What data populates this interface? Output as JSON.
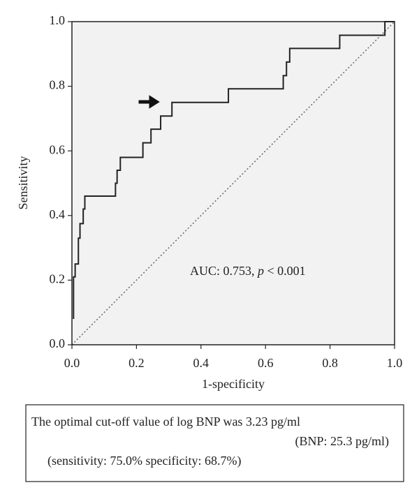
{
  "chart_data": {
    "type": "line",
    "step": true,
    "xlabel": "1-specificity",
    "ylabel": "Sensitivity",
    "annotation": [
      "AUC: 0.753, ",
      "p",
      " < 0.001"
    ],
    "notes": [
      "The optimal cut-off value of log BNP was 3.23 pg/ml",
      "(BNP: 25.3 pg/ml)",
      "(sensitivity: 75.0% specificity: 68.7%)"
    ],
    "x": [
      0.005,
      0.005,
      0.01,
      0.01,
      0.02,
      0.02,
      0.025,
      0.025,
      0.035,
      0.035,
      0.04,
      0.04,
      0.135,
      0.135,
      0.14,
      0.14,
      0.15,
      0.15,
      0.22,
      0.22,
      0.245,
      0.245,
      0.275,
      0.275,
      0.31,
      0.31,
      0.485,
      0.485,
      0.655,
      0.655,
      0.665,
      0.665,
      0.675,
      0.675,
      0.83,
      0.83,
      0.97,
      0.97,
      1.0
    ],
    "series": [
      {
        "color": "#222222",
        "values": [
          0.08,
          0.21,
          0.21,
          0.25,
          0.25,
          0.33,
          0.33,
          0.375,
          0.375,
          0.42,
          0.42,
          0.46,
          0.46,
          0.5,
          0.5,
          0.54,
          0.54,
          0.58,
          0.58,
          0.625,
          0.625,
          0.667,
          0.667,
          0.708,
          0.708,
          0.75,
          0.75,
          0.792,
          0.792,
          0.833,
          0.833,
          0.875,
          0.875,
          0.917,
          0.917,
          0.958,
          0.958,
          1.0,
          1.0
        ]
      }
    ],
    "xlim": [
      0,
      1
    ],
    "ylim": [
      0,
      1
    ],
    "xticks": [
      {
        "value": 0,
        "label": "0.0"
      },
      0.2,
      0.4,
      0.6,
      0.8,
      {
        "value": 1,
        "label": "1.0"
      }
    ],
    "yticks": [
      {
        "value": 0,
        "label": "0.0"
      },
      0.2,
      0.4,
      0.6,
      0.8,
      {
        "value": 1,
        "label": "1.0"
      }
    ],
    "grid": false
  }
}
